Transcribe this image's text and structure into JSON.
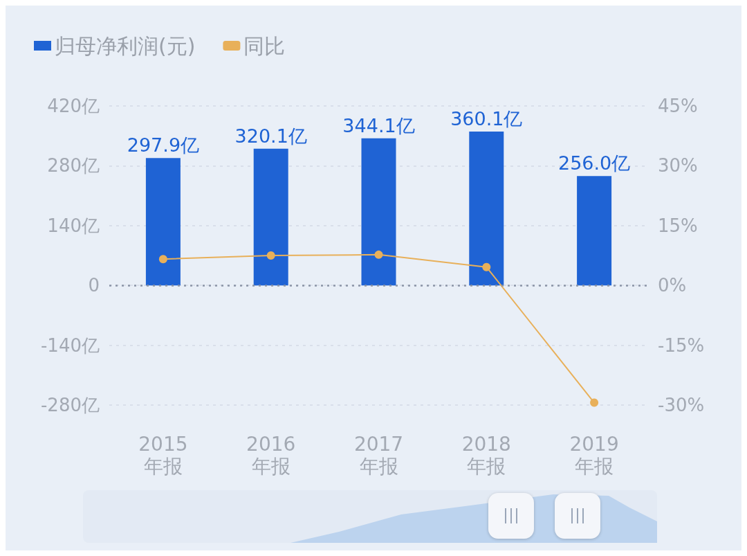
{
  "chart_data": {
    "type": "bar",
    "categories": [
      "2015\n年报",
      "2016\n年报",
      "2017\n年报",
      "2018\n年报",
      "2019\n年报"
    ],
    "series": [
      {
        "name": "归母净利润(元)",
        "color": "#1f63d4",
        "values": [
          297.9,
          320.1,
          344.1,
          360.1,
          256.0
        ],
        "value_labels": [
          "297.9亿",
          "320.1亿",
          "344.1亿",
          "360.1亿",
          "256.0亿"
        ]
      },
      {
        "name": "同比",
        "type": "line",
        "axis": "y2",
        "color": "#e8b05a",
        "values": [
          6.6,
          7.5,
          7.7,
          4.6,
          -29.4
        ]
      }
    ],
    "ylim": [
      -280,
      420
    ],
    "yticks": [
      {
        "value": -280,
        "label": "-280亿"
      },
      {
        "value": -140,
        "label": "-140亿"
      },
      {
        "value": 0,
        "label": "0"
      },
      {
        "value": 140,
        "label": "140亿"
      },
      {
        "value": 280,
        "label": "280亿"
      },
      {
        "value": 420,
        "label": "420亿"
      }
    ],
    "y2lim": [
      -30,
      45
    ],
    "y2ticks": [
      {
        "value": -30,
        "label": "-30%"
      },
      {
        "value": -15,
        "label": "-15%"
      },
      {
        "value": 0,
        "label": "0%"
      },
      {
        "value": 15,
        "label": "15%"
      },
      {
        "value": 30,
        "label": "30%"
      },
      {
        "value": 45,
        "label": "45%"
      }
    ],
    "ref_lines": [
      {
        "axis": "y",
        "value": 0,
        "color": "#8a94a6",
        "line_style": "dotted"
      }
    ],
    "grid": "y",
    "legend": "top left",
    "marker": "circle",
    "line_style": "solid"
  }
}
